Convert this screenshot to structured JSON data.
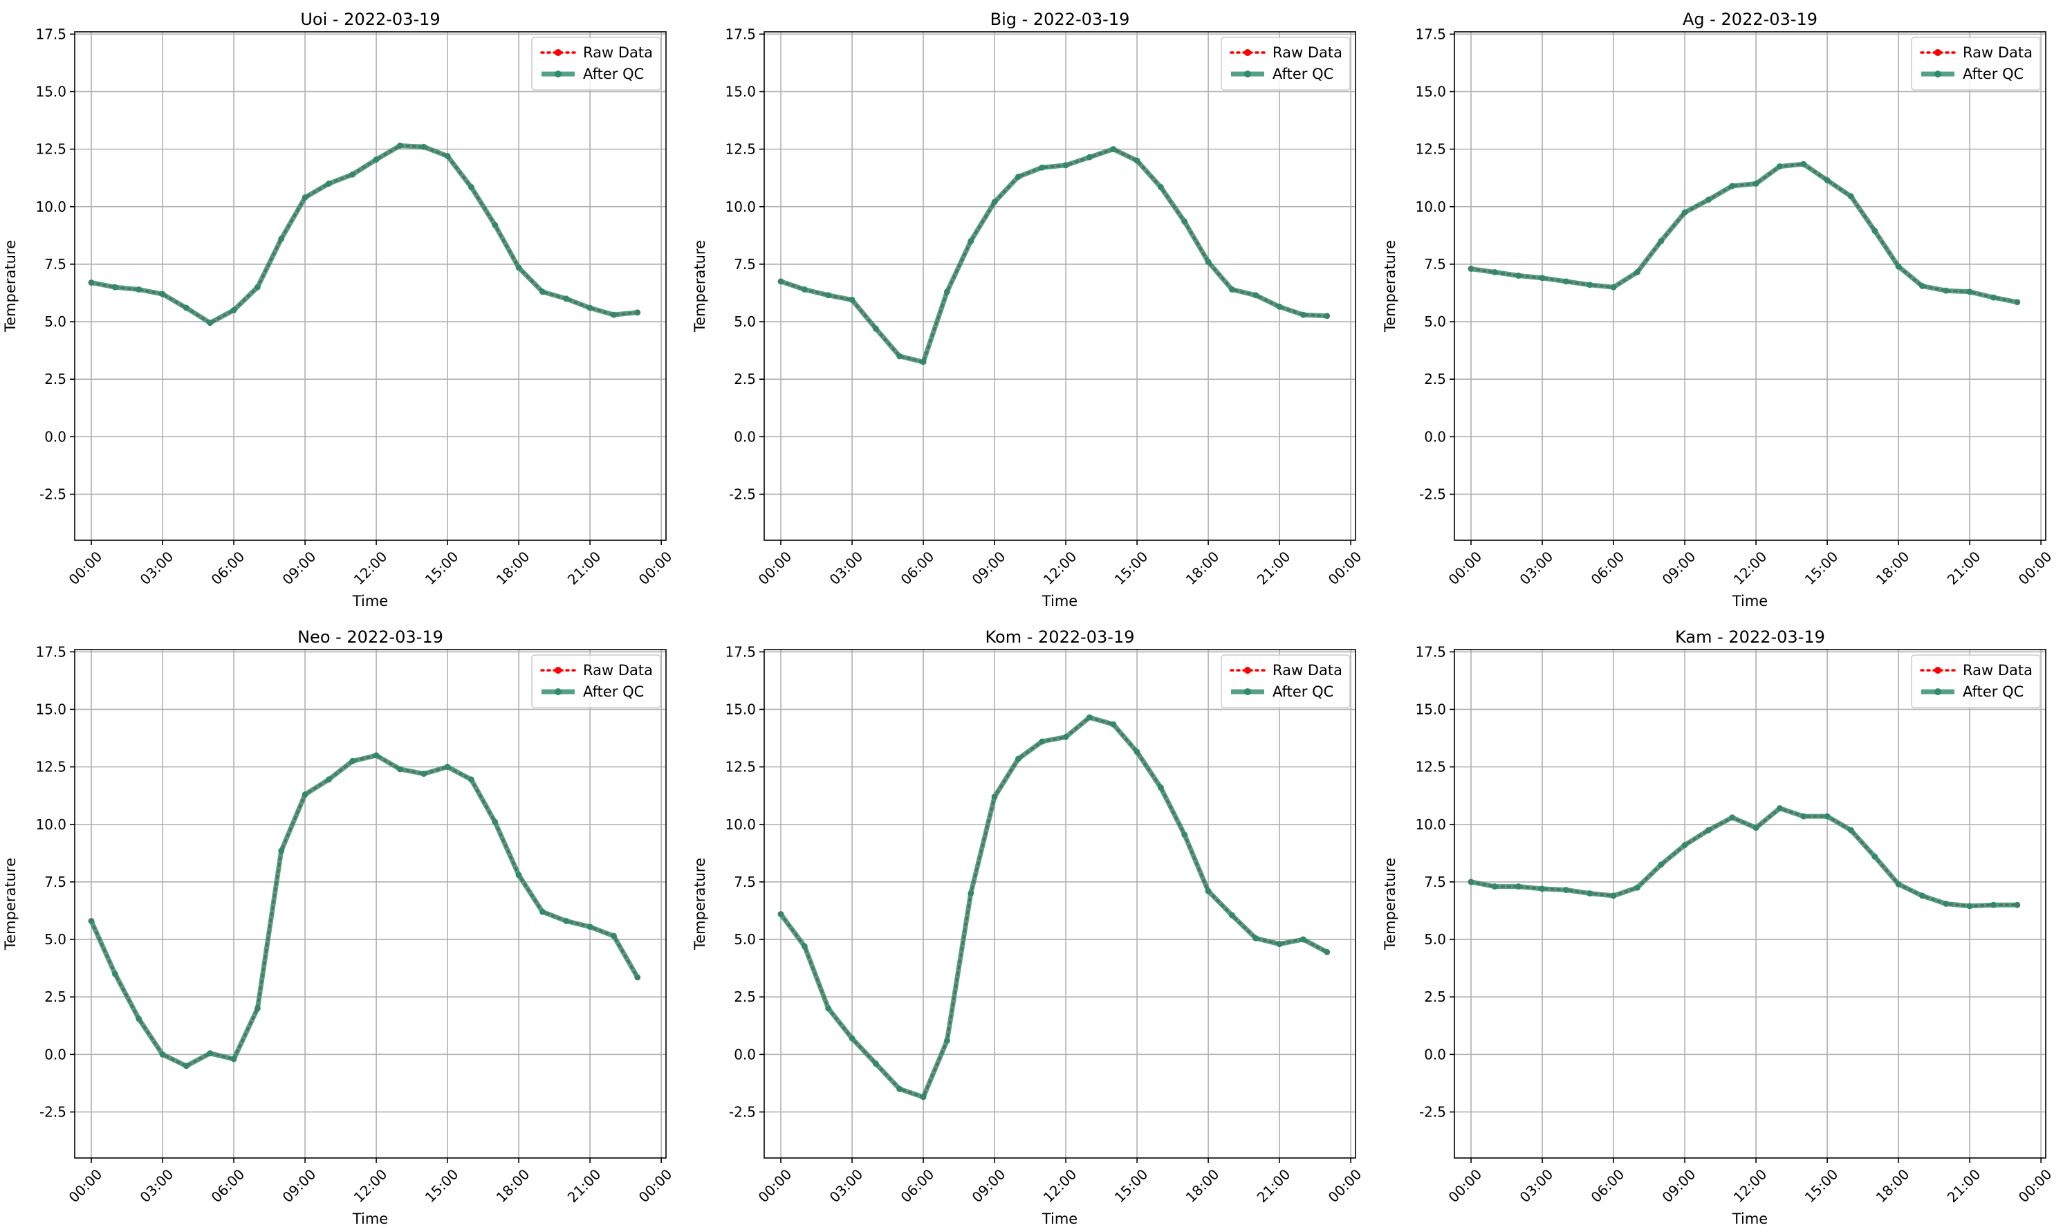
{
  "chart_data": [
    {
      "type": "line",
      "title": "Uoi - 2022-03-19",
      "xlabel": "Time",
      "ylabel": "Temperature",
      "ylim": [
        -4.5,
        17.6
      ],
      "yticks": [
        "-2.5",
        "0.0",
        "2.5",
        "5.0",
        "7.5",
        "10.0",
        "12.5",
        "15.0",
        "17.5"
      ],
      "xticks": [
        "00:00",
        "03:00",
        "06:00",
        "09:00",
        "12:00",
        "15:00",
        "18:00",
        "21:00",
        "00:00"
      ],
      "xlim_hours": [
        -0.7,
        24.2
      ],
      "grid": true,
      "legend": "top-right",
      "hours": [
        0,
        1,
        2,
        3,
        4,
        5,
        6,
        7,
        8,
        9,
        10,
        11,
        12,
        13,
        14,
        15,
        16,
        17,
        18,
        19,
        20,
        21,
        22,
        23
      ],
      "series": [
        {
          "name": "Raw Data",
          "color": "#ff0000",
          "values": [
            6.7,
            6.5,
            6.4,
            6.2,
            5.6,
            4.95,
            5.5,
            6.5,
            8.6,
            10.4,
            11.0,
            11.4,
            12.05,
            12.65,
            12.6,
            12.2,
            10.85,
            9.2,
            7.35,
            6.3,
            6.0,
            5.6,
            5.3,
            5.4
          ]
        },
        {
          "name": "After QC",
          "color": "#2e8b6d",
          "values": [
            6.7,
            6.5,
            6.4,
            6.2,
            5.6,
            4.95,
            5.5,
            6.5,
            8.6,
            10.4,
            11.0,
            11.4,
            12.05,
            12.65,
            12.6,
            12.2,
            10.85,
            9.2,
            7.35,
            6.3,
            6.0,
            5.6,
            5.3,
            5.4
          ]
        }
      ]
    },
    {
      "type": "line",
      "title": "Big - 2022-03-19",
      "xlabel": "Time",
      "ylabel": "Temperature",
      "ylim": [
        -4.5,
        17.6
      ],
      "yticks": [
        "-2.5",
        "0.0",
        "2.5",
        "5.0",
        "7.5",
        "10.0",
        "12.5",
        "15.0",
        "17.5"
      ],
      "xticks": [
        "00:00",
        "03:00",
        "06:00",
        "09:00",
        "12:00",
        "15:00",
        "18:00",
        "21:00",
        "00:00"
      ],
      "xlim_hours": [
        -0.7,
        24.2
      ],
      "grid": true,
      "legend": "top-right",
      "hours": [
        0,
        1,
        2,
        3,
        4,
        5,
        6,
        7,
        8,
        9,
        10,
        11,
        12,
        13,
        14,
        15,
        16,
        17,
        18,
        19,
        20,
        21,
        22,
        23
      ],
      "series": [
        {
          "name": "Raw Data",
          "color": "#ff0000",
          "values": [
            6.75,
            6.4,
            6.15,
            5.95,
            4.7,
            3.5,
            3.25,
            6.3,
            8.5,
            10.2,
            11.3,
            11.7,
            11.8,
            12.15,
            12.5,
            12.0,
            10.85,
            9.35,
            7.6,
            6.4,
            6.15,
            5.65,
            5.3,
            5.25
          ]
        },
        {
          "name": "After QC",
          "color": "#2e8b6d",
          "values": [
            6.75,
            6.4,
            6.15,
            5.95,
            4.7,
            3.5,
            3.25,
            6.3,
            8.5,
            10.2,
            11.3,
            11.7,
            11.8,
            12.15,
            12.5,
            12.0,
            10.85,
            9.35,
            7.6,
            6.4,
            6.15,
            5.65,
            5.3,
            5.25
          ]
        }
      ]
    },
    {
      "type": "line",
      "title": "Ag - 2022-03-19",
      "xlabel": "Time",
      "ylabel": "Temperature",
      "ylim": [
        -4.5,
        17.6
      ],
      "yticks": [
        "-2.5",
        "0.0",
        "2.5",
        "5.0",
        "7.5",
        "10.0",
        "12.5",
        "15.0",
        "17.5"
      ],
      "xticks": [
        "00:00",
        "03:00",
        "06:00",
        "09:00",
        "12:00",
        "15:00",
        "18:00",
        "21:00",
        "00:00"
      ],
      "xlim_hours": [
        -0.7,
        24.2
      ],
      "grid": true,
      "legend": "top-right",
      "hours": [
        0,
        1,
        2,
        3,
        4,
        5,
        6,
        7,
        8,
        9,
        10,
        11,
        12,
        13,
        14,
        15,
        16,
        17,
        18,
        19,
        20,
        21,
        22,
        23
      ],
      "series": [
        {
          "name": "Raw Data",
          "color": "#ff0000",
          "values": [
            7.3,
            7.15,
            7.0,
            6.9,
            6.75,
            6.6,
            6.5,
            7.15,
            8.5,
            9.75,
            10.3,
            10.9,
            11.0,
            11.75,
            11.85,
            11.15,
            10.45,
            8.95,
            7.4,
            6.55,
            6.35,
            6.3,
            6.05,
            5.85
          ]
        },
        {
          "name": "After QC",
          "color": "#2e8b6d",
          "values": [
            7.3,
            7.15,
            7.0,
            6.9,
            6.75,
            6.6,
            6.5,
            7.15,
            8.5,
            9.75,
            10.3,
            10.9,
            11.0,
            11.75,
            11.85,
            11.15,
            10.45,
            8.95,
            7.4,
            6.55,
            6.35,
            6.3,
            6.05,
            5.85
          ]
        }
      ]
    },
    {
      "type": "line",
      "title": "Neo - 2022-03-19",
      "xlabel": "Time",
      "ylabel": "Temperature",
      "ylim": [
        -4.5,
        17.6
      ],
      "yticks": [
        "-2.5",
        "0.0",
        "2.5",
        "5.0",
        "7.5",
        "10.0",
        "12.5",
        "15.0",
        "17.5"
      ],
      "xticks": [
        "00:00",
        "03:00",
        "06:00",
        "09:00",
        "12:00",
        "15:00",
        "18:00",
        "21:00",
        "00:00"
      ],
      "xlim_hours": [
        -0.7,
        24.2
      ],
      "grid": true,
      "legend": "top-right",
      "hours": [
        0,
        1,
        2,
        3,
        4,
        5,
        6,
        7,
        8,
        9,
        10,
        11,
        12,
        13,
        14,
        15,
        16,
        17,
        18,
        19,
        20,
        21,
        22,
        23
      ],
      "series": [
        {
          "name": "Raw Data",
          "color": "#ff0000",
          "values": [
            5.8,
            3.5,
            1.55,
            0.0,
            -0.5,
            0.05,
            -0.2,
            2.0,
            8.85,
            11.3,
            11.95,
            12.75,
            13.0,
            12.4,
            12.2,
            12.5,
            11.95,
            10.1,
            7.8,
            6.2,
            5.8,
            5.55,
            5.15,
            3.35
          ]
        },
        {
          "name": "After QC",
          "color": "#2e8b6d",
          "values": [
            5.8,
            3.5,
            1.55,
            0.0,
            -0.5,
            0.05,
            -0.2,
            2.0,
            8.85,
            11.3,
            11.95,
            12.75,
            13.0,
            12.4,
            12.2,
            12.5,
            11.95,
            10.1,
            7.8,
            6.2,
            5.8,
            5.55,
            5.15,
            3.35
          ]
        }
      ]
    },
    {
      "type": "line",
      "title": "Kom - 2022-03-19",
      "xlabel": "Time",
      "ylabel": "Temperature",
      "ylim": [
        -4.5,
        17.6
      ],
      "yticks": [
        "-2.5",
        "0.0",
        "2.5",
        "5.0",
        "7.5",
        "10.0",
        "12.5",
        "15.0",
        "17.5"
      ],
      "xticks": [
        "00:00",
        "03:00",
        "06:00",
        "09:00",
        "12:00",
        "15:00",
        "18:00",
        "21:00",
        "00:00"
      ],
      "xlim_hours": [
        -0.7,
        24.2
      ],
      "grid": true,
      "legend": "top-right",
      "hours": [
        0,
        1,
        2,
        3,
        4,
        5,
        6,
        7,
        8,
        9,
        10,
        11,
        12,
        13,
        14,
        15,
        16,
        17,
        18,
        19,
        20,
        21,
        22,
        23
      ],
      "series": [
        {
          "name": "Raw Data",
          "color": "#ff0000",
          "values": [
            6.1,
            4.7,
            2.0,
            0.7,
            -0.4,
            -1.5,
            -1.85,
            0.6,
            7.0,
            11.2,
            12.85,
            13.6,
            13.8,
            14.65,
            14.35,
            13.15,
            11.6,
            9.55,
            7.1,
            6.05,
            5.05,
            4.8,
            5.0,
            4.45
          ]
        },
        {
          "name": "After QC",
          "color": "#2e8b6d",
          "values": [
            6.1,
            4.7,
            2.0,
            0.7,
            -0.4,
            -1.5,
            -1.85,
            0.6,
            7.0,
            11.2,
            12.85,
            13.6,
            13.8,
            14.65,
            14.35,
            13.15,
            11.6,
            9.55,
            7.1,
            6.05,
            5.05,
            4.8,
            5.0,
            4.45
          ]
        }
      ]
    },
    {
      "type": "line",
      "title": "Kam - 2022-03-19",
      "xlabel": "Time",
      "ylabel": "Temperature",
      "ylim": [
        -4.5,
        17.6
      ],
      "yticks": [
        "-2.5",
        "0.0",
        "2.5",
        "5.0",
        "7.5",
        "10.0",
        "12.5",
        "15.0",
        "17.5"
      ],
      "xticks": [
        "00:00",
        "03:00",
        "06:00",
        "09:00",
        "12:00",
        "15:00",
        "18:00",
        "21:00",
        "00:00"
      ],
      "xlim_hours": [
        -0.7,
        24.2
      ],
      "grid": true,
      "legend": "top-right",
      "hours": [
        0,
        1,
        2,
        3,
        4,
        5,
        6,
        7,
        8,
        9,
        10,
        11,
        12,
        13,
        14,
        15,
        16,
        17,
        18,
        19,
        20,
        21,
        22,
        23
      ],
      "series": [
        {
          "name": "Raw Data",
          "color": "#ff0000",
          "values": [
            7.5,
            7.3,
            7.3,
            7.2,
            7.15,
            7.0,
            6.9,
            7.25,
            8.25,
            9.1,
            9.75,
            10.3,
            9.85,
            10.7,
            10.35,
            10.35,
            9.75,
            8.6,
            7.4,
            6.9,
            6.55,
            6.45,
            6.5,
            6.5
          ]
        },
        {
          "name": "After QC",
          "color": "#2e8b6d",
          "values": [
            7.5,
            7.3,
            7.3,
            7.2,
            7.15,
            7.0,
            6.9,
            7.25,
            8.25,
            9.1,
            9.75,
            10.3,
            9.85,
            10.7,
            10.35,
            10.35,
            9.75,
            8.6,
            7.4,
            6.9,
            6.55,
            6.45,
            6.5,
            6.5
          ]
        }
      ]
    }
  ]
}
